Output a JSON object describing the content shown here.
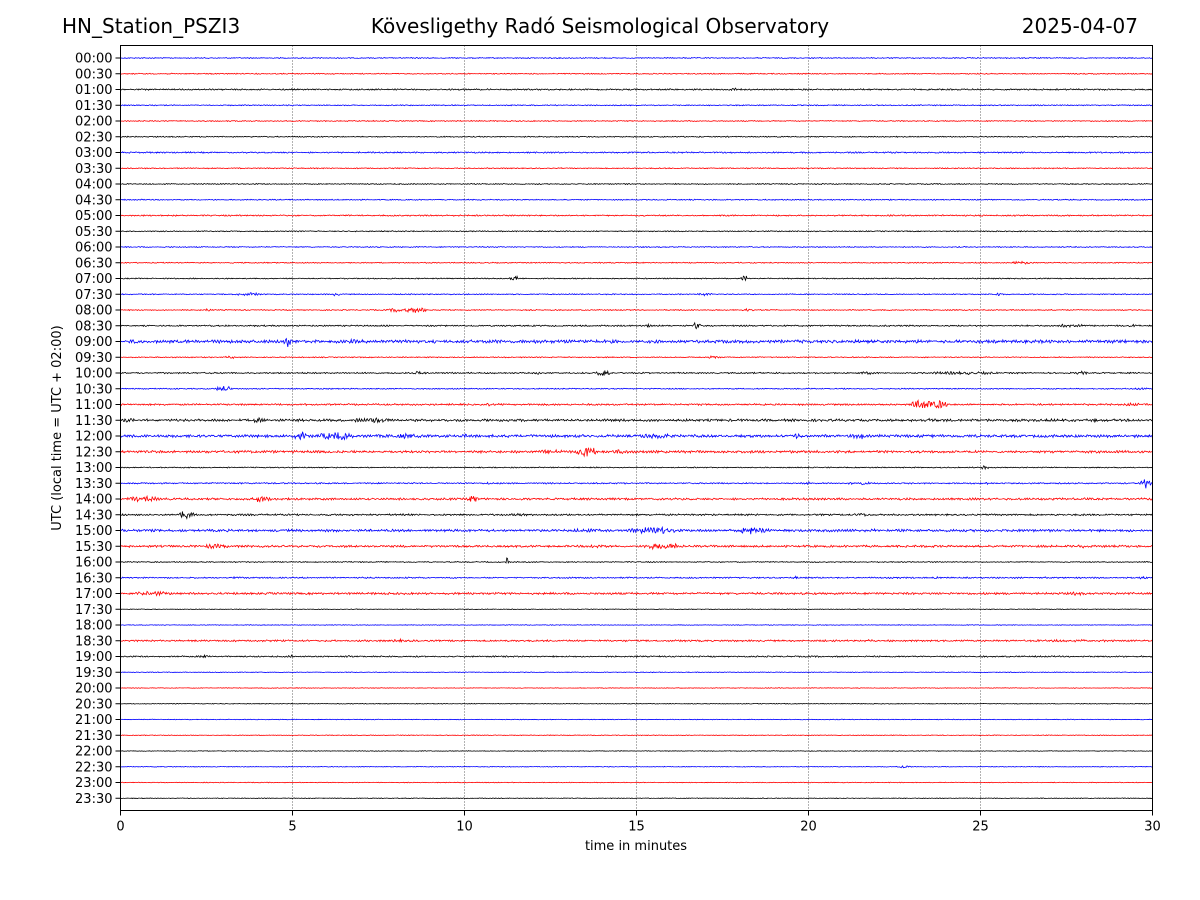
{
  "header": {
    "station": "HN_Station_PSZI3",
    "observatory": "Kövesligethy Radó Seismological Observatory",
    "date": "2025-04-07"
  },
  "chart_data": {
    "type": "line",
    "title": "Kövesligethy Radó Seismological Observatory",
    "xlabel": "time in minutes",
    "ylabel": "UTC (local time = UTC + 02:00)",
    "xlim": [
      0,
      30
    ],
    "x_ticks": [
      "0",
      "5",
      "10",
      "15",
      "20",
      "25",
      "30"
    ],
    "grid": "vertical dotted lines at 5, 10, 15, 20, 25 minutes",
    "trace_colors": [
      "#0000ff",
      "#ff0000",
      "#000000"
    ],
    "rows": [
      {
        "label": "00:00",
        "activity": [
          [
            0,
            30,
            0.3
          ]
        ]
      },
      {
        "label": "00:30",
        "activity": [
          [
            0,
            30,
            0.3
          ]
        ]
      },
      {
        "label": "01:00",
        "activity": [
          [
            0,
            30,
            0.4
          ],
          [
            17.5,
            18.2,
            0.8
          ]
        ]
      },
      {
        "label": "01:30",
        "activity": [
          [
            0,
            30,
            0.3
          ]
        ]
      },
      {
        "label": "02:00",
        "activity": [
          [
            0,
            30,
            0.3
          ]
        ]
      },
      {
        "label": "02:30",
        "activity": [
          [
            0,
            30,
            0.3
          ]
        ]
      },
      {
        "label": "03:00",
        "activity": [
          [
            0,
            30,
            0.4
          ]
        ]
      },
      {
        "label": "03:30",
        "activity": [
          [
            0,
            30,
            0.3
          ]
        ]
      },
      {
        "label": "04:00",
        "activity": [
          [
            0,
            30,
            0.3
          ]
        ]
      },
      {
        "label": "04:30",
        "activity": [
          [
            0,
            30,
            0.3
          ]
        ]
      },
      {
        "label": "05:00",
        "activity": [
          [
            0,
            30,
            0.4
          ]
        ]
      },
      {
        "label": "05:30",
        "activity": [
          [
            0,
            30,
            0.3
          ]
        ]
      },
      {
        "label": "06:00",
        "activity": [
          [
            0,
            30,
            0.3
          ]
        ]
      },
      {
        "label": "06:30",
        "activity": [
          [
            0,
            30,
            0.3
          ],
          [
            25.5,
            27,
            0.8
          ]
        ]
      },
      {
        "label": "07:00",
        "activity": [
          [
            0,
            30,
            0.3
          ],
          [
            11.3,
            11.6,
            3
          ],
          [
            18,
            18.3,
            1.5
          ]
        ]
      },
      {
        "label": "07:30",
        "activity": [
          [
            0,
            30,
            0.3
          ],
          [
            3.2,
            4.2,
            1
          ],
          [
            6.1,
            6.4,
            1.2
          ],
          [
            16.6,
            17.4,
            0.8
          ],
          [
            25.4,
            25.7,
            1.2
          ]
        ]
      },
      {
        "label": "08:00",
        "activity": [
          [
            0,
            30,
            0.3
          ],
          [
            2.4,
            2.7,
            1
          ],
          [
            7.6,
            9.2,
            1.6
          ],
          [
            18,
            18.5,
            0.8
          ]
        ]
      },
      {
        "label": "08:30",
        "activity": [
          [
            0,
            30,
            0.4
          ],
          [
            15.2,
            15.5,
            1
          ],
          [
            16.6,
            16.9,
            2
          ],
          [
            27,
            28.3,
            1
          ],
          [
            29.2,
            29.8,
            0.8
          ]
        ]
      },
      {
        "label": "09:00",
        "activity": [
          [
            0,
            30,
            0.9
          ],
          [
            4.7,
            5,
            3.5
          ],
          [
            0.2,
            0.8,
            1.5
          ],
          [
            6.5,
            7,
            1.2
          ]
        ]
      },
      {
        "label": "09:30",
        "activity": [
          [
            0,
            30,
            0.3
          ],
          [
            3,
            3.4,
            1
          ],
          [
            17,
            17.5,
            0.8
          ]
        ]
      },
      {
        "label": "10:00",
        "activity": [
          [
            0,
            30,
            0.4
          ],
          [
            8.4,
            9,
            1
          ],
          [
            12,
            12.3,
            0.8
          ],
          [
            13.8,
            14.3,
            2.4
          ],
          [
            21.2,
            22.2,
            0.8
          ],
          [
            23,
            26,
            0.9
          ],
          [
            27.7,
            28.2,
            1
          ]
        ]
      },
      {
        "label": "10:30",
        "activity": [
          [
            0,
            30,
            0.3
          ],
          [
            2.7,
            3.3,
            1.8
          ],
          [
            29.3,
            30,
            0.8
          ]
        ]
      },
      {
        "label": "11:00",
        "activity": [
          [
            0,
            30,
            0.5
          ],
          [
            10.5,
            10.8,
            1
          ],
          [
            22.8,
            24.2,
            3
          ],
          [
            29,
            29.8,
            1
          ]
        ]
      },
      {
        "label": "11:30",
        "activity": [
          [
            0,
            30,
            0.7
          ],
          [
            0,
            0.5,
            1.4
          ],
          [
            3.7,
            4.3,
            1.5
          ],
          [
            6.5,
            8.2,
            1.6
          ],
          [
            9.3,
            9.8,
            1
          ],
          [
            23.2,
            24,
            1.2
          ],
          [
            26.8,
            27.2,
            1
          ],
          [
            28.2,
            28.5,
            1.2
          ]
        ]
      },
      {
        "label": "12:00",
        "activity": [
          [
            0,
            30,
            0.8
          ],
          [
            4.8,
            5.5,
            3
          ],
          [
            5.5,
            7,
            2.2
          ],
          [
            7.5,
            9,
            1.4
          ],
          [
            9.7,
            10.2,
            1.2
          ],
          [
            14.8,
            16.3,
            1.6
          ],
          [
            19.4,
            20,
            1.5
          ],
          [
            21.2,
            21.8,
            1.8
          ]
        ]
      },
      {
        "label": "12:30",
        "activity": [
          [
            0,
            30,
            0.7
          ],
          [
            12,
            13.1,
            1.3
          ],
          [
            13.1,
            14,
            2.8
          ],
          [
            14,
            15,
            1.2
          ],
          [
            22.4,
            22.7,
            1
          ]
        ]
      },
      {
        "label": "13:00",
        "activity": [
          [
            0,
            30,
            0.3
          ],
          [
            25,
            25.3,
            1.5
          ]
        ]
      },
      {
        "label": "13:30",
        "activity": [
          [
            0,
            30,
            0.4
          ],
          [
            10.6,
            10.8,
            1
          ],
          [
            19.8,
            20.1,
            1
          ],
          [
            21,
            22,
            1
          ],
          [
            25,
            25.3,
            0.8
          ],
          [
            29.6,
            30,
            3
          ]
        ]
      },
      {
        "label": "14:00",
        "activity": [
          [
            0,
            30,
            0.6
          ],
          [
            0,
            1.3,
            1.6
          ],
          [
            2.7,
            2.9,
            1
          ],
          [
            3.5,
            4.5,
            1.8
          ],
          [
            10,
            10.5,
            2.5
          ],
          [
            27.9,
            28.2,
            1.2
          ]
        ]
      },
      {
        "label": "14:30",
        "activity": [
          [
            0,
            30,
            0.5
          ],
          [
            1.6,
            2.2,
            2.4
          ],
          [
            11.2,
            12,
            1
          ],
          [
            21,
            22,
            1
          ]
        ]
      },
      {
        "label": "15:00",
        "activity": [
          [
            0,
            30,
            0.7
          ],
          [
            9.3,
            9.5,
            1
          ],
          [
            12.5,
            14.5,
            1
          ],
          [
            14.5,
            16.5,
            2
          ],
          [
            17.8,
            19,
            2.2
          ],
          [
            21.5,
            22.5,
            0.9
          ],
          [
            24.5,
            25,
            0.8
          ]
        ]
      },
      {
        "label": "15:30",
        "activity": [
          [
            0,
            30,
            0.6
          ],
          [
            2,
            3.5,
            1.2
          ],
          [
            4,
            4.3,
            0.9
          ],
          [
            13.5,
            14.2,
            1.3
          ],
          [
            15,
            16.5,
            2
          ],
          [
            23.3,
            23.9,
            1
          ],
          [
            27.7,
            28.2,
            1
          ]
        ]
      },
      {
        "label": "16:00",
        "activity": [
          [
            0,
            30,
            0.3
          ],
          [
            11.2,
            11.3,
            3.5
          ]
        ]
      },
      {
        "label": "16:30",
        "activity": [
          [
            0,
            30,
            0.4
          ],
          [
            3.2,
            3.6,
            0.9
          ],
          [
            19.5,
            19.8,
            1
          ],
          [
            23.5,
            23.8,
            1
          ],
          [
            26.7,
            27.3,
            0.8
          ],
          [
            29.4,
            30,
            1
          ]
        ]
      },
      {
        "label": "17:00",
        "activity": [
          [
            0,
            30,
            0.6
          ],
          [
            0,
            1.8,
            1.2
          ],
          [
            4.2,
            4.5,
            0.8
          ],
          [
            10.4,
            10.7,
            0.8
          ],
          [
            27.5,
            28.1,
            1.1
          ]
        ]
      },
      {
        "label": "17:30",
        "activity": [
          [
            0,
            30,
            0.2
          ]
        ]
      },
      {
        "label": "18:00",
        "activity": [
          [
            0,
            30,
            0.2
          ]
        ]
      },
      {
        "label": "18:30",
        "activity": [
          [
            0,
            30,
            0.5
          ],
          [
            7.7,
            8.5,
            0.9
          ],
          [
            21.5,
            22,
            0.8
          ],
          [
            25,
            30,
            0.7
          ]
        ]
      },
      {
        "label": "19:00",
        "activity": [
          [
            0,
            30,
            0.4
          ],
          [
            2.2,
            2.7,
            1
          ],
          [
            4.8,
            5.1,
            0.8
          ],
          [
            6.5,
            6.7,
            0.8
          ]
        ]
      },
      {
        "label": "19:30",
        "activity": [
          [
            0,
            30,
            0.2
          ]
        ]
      },
      {
        "label": "20:00",
        "activity": [
          [
            0,
            30,
            0.2
          ]
        ]
      },
      {
        "label": "20:30",
        "activity": [
          [
            0,
            30,
            0.2
          ]
        ]
      },
      {
        "label": "21:00",
        "activity": [
          [
            0,
            30,
            0.2
          ]
        ]
      },
      {
        "label": "21:30",
        "activity": [
          [
            0,
            30,
            0.2
          ]
        ]
      },
      {
        "label": "22:00",
        "activity": [
          [
            0,
            30,
            0.2
          ]
        ]
      },
      {
        "label": "22:30",
        "activity": [
          [
            0,
            30,
            0.2
          ],
          [
            22.5,
            23,
            0.9
          ]
        ]
      },
      {
        "label": "23:00",
        "activity": [
          [
            0,
            30,
            0.2
          ]
        ]
      },
      {
        "label": "23:30",
        "activity": [
          [
            0,
            30,
            0.2
          ]
        ]
      }
    ]
  }
}
